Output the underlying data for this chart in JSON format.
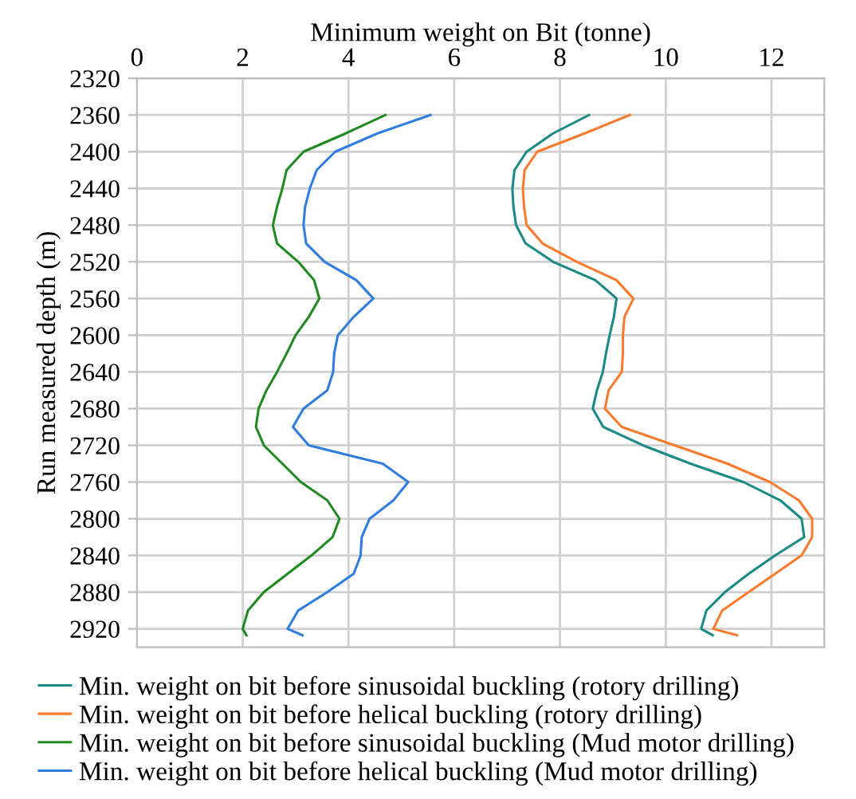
{
  "chart_data": {
    "type": "line",
    "xlabel": "Minimum weight on Bit (tonne)",
    "ylabel": "Run measured depth (m)",
    "xlim": [
      0,
      13
    ],
    "xticks": [
      0,
      2,
      4,
      6,
      8,
      10,
      12
    ],
    "ylim": [
      2940,
      2320
    ],
    "yticks": [
      2320,
      2360,
      2400,
      2440,
      2480,
      2520,
      2560,
      2600,
      2640,
      2680,
      2720,
      2760,
      2800,
      2840,
      2880,
      2920
    ],
    "grid": true,
    "legend": "bottom",
    "marker": "none",
    "line_style": "solid",
    "series": [
      {
        "name": "Min. weight on bit before sinusoidal buckling (rotory drilling)",
        "color": "#1a8a87",
        "x": [
          8.55,
          7.87,
          7.37,
          7.14,
          7.1,
          7.12,
          7.17,
          7.35,
          7.87,
          8.67,
          9.07,
          9.02,
          8.94,
          8.87,
          8.81,
          8.7,
          8.62,
          8.82,
          9.57,
          10.47,
          11.47,
          12.17,
          12.57,
          12.62,
          12.07,
          11.57,
          11.12,
          10.77,
          10.67,
          10.89
        ],
        "values": [
          2360,
          2380,
          2400,
          2420,
          2440,
          2460,
          2480,
          2500,
          2520,
          2540,
          2560,
          2580,
          2600,
          2620,
          2640,
          2660,
          2680,
          2700,
          2720,
          2740,
          2760,
          2780,
          2800,
          2820,
          2840,
          2860,
          2880,
          2900,
          2920,
          2927
        ]
      },
      {
        "name": "Min. weight on bit before helical buckling (rotory drilling)",
        "color": "#f97a2a",
        "x": [
          9.32,
          8.47,
          7.57,
          7.33,
          7.3,
          7.32,
          7.37,
          7.67,
          8.32,
          9.07,
          9.39,
          9.22,
          9.19,
          9.19,
          9.17,
          8.92,
          8.85,
          9.17,
          10.17,
          11.17,
          11.97,
          12.52,
          12.77,
          12.77,
          12.57,
          12.07,
          11.57,
          11.07,
          10.9,
          11.35
        ],
        "values": [
          2360,
          2380,
          2400,
          2420,
          2440,
          2460,
          2480,
          2500,
          2520,
          2540,
          2560,
          2580,
          2600,
          2620,
          2640,
          2660,
          2680,
          2700,
          2720,
          2740,
          2760,
          2780,
          2800,
          2820,
          2840,
          2860,
          2880,
          2900,
          2920,
          2927
        ]
      },
      {
        "name": "Min. weight on bit before sinusoidal buckling (Mud motor drilling)",
        "color": "#1f8a1f",
        "x": [
          4.7,
          3.95,
          3.15,
          2.83,
          2.75,
          2.65,
          2.57,
          2.65,
          3.05,
          3.35,
          3.45,
          3.25,
          3.0,
          2.83,
          2.65,
          2.45,
          2.3,
          2.25,
          2.4,
          2.75,
          3.1,
          3.6,
          3.83,
          3.7,
          3.3,
          2.85,
          2.4,
          2.1,
          2.0,
          2.07
        ],
        "values": [
          2360,
          2380,
          2400,
          2420,
          2440,
          2460,
          2480,
          2500,
          2520,
          2540,
          2560,
          2580,
          2600,
          2620,
          2640,
          2660,
          2680,
          2700,
          2720,
          2740,
          2760,
          2780,
          2800,
          2820,
          2840,
          2860,
          2880,
          2900,
          2920,
          2927
        ]
      },
      {
        "name": "Min. weight on bit before helical buckling (Mud motor drilling)",
        "color": "#2f7de0",
        "x": [
          5.55,
          4.55,
          3.75,
          3.4,
          3.27,
          3.18,
          3.15,
          3.2,
          3.55,
          4.15,
          4.47,
          4.1,
          3.8,
          3.73,
          3.71,
          3.6,
          3.15,
          2.95,
          3.25,
          4.65,
          5.13,
          4.85,
          4.4,
          4.25,
          4.23,
          4.1,
          3.6,
          3.05,
          2.85,
          3.13
        ],
        "values": [
          2360,
          2380,
          2400,
          2420,
          2440,
          2460,
          2480,
          2500,
          2520,
          2540,
          2560,
          2580,
          2600,
          2620,
          2640,
          2660,
          2680,
          2700,
          2720,
          2740,
          2760,
          2780,
          2800,
          2820,
          2840,
          2860,
          2880,
          2900,
          2920,
          2927
        ]
      }
    ]
  }
}
